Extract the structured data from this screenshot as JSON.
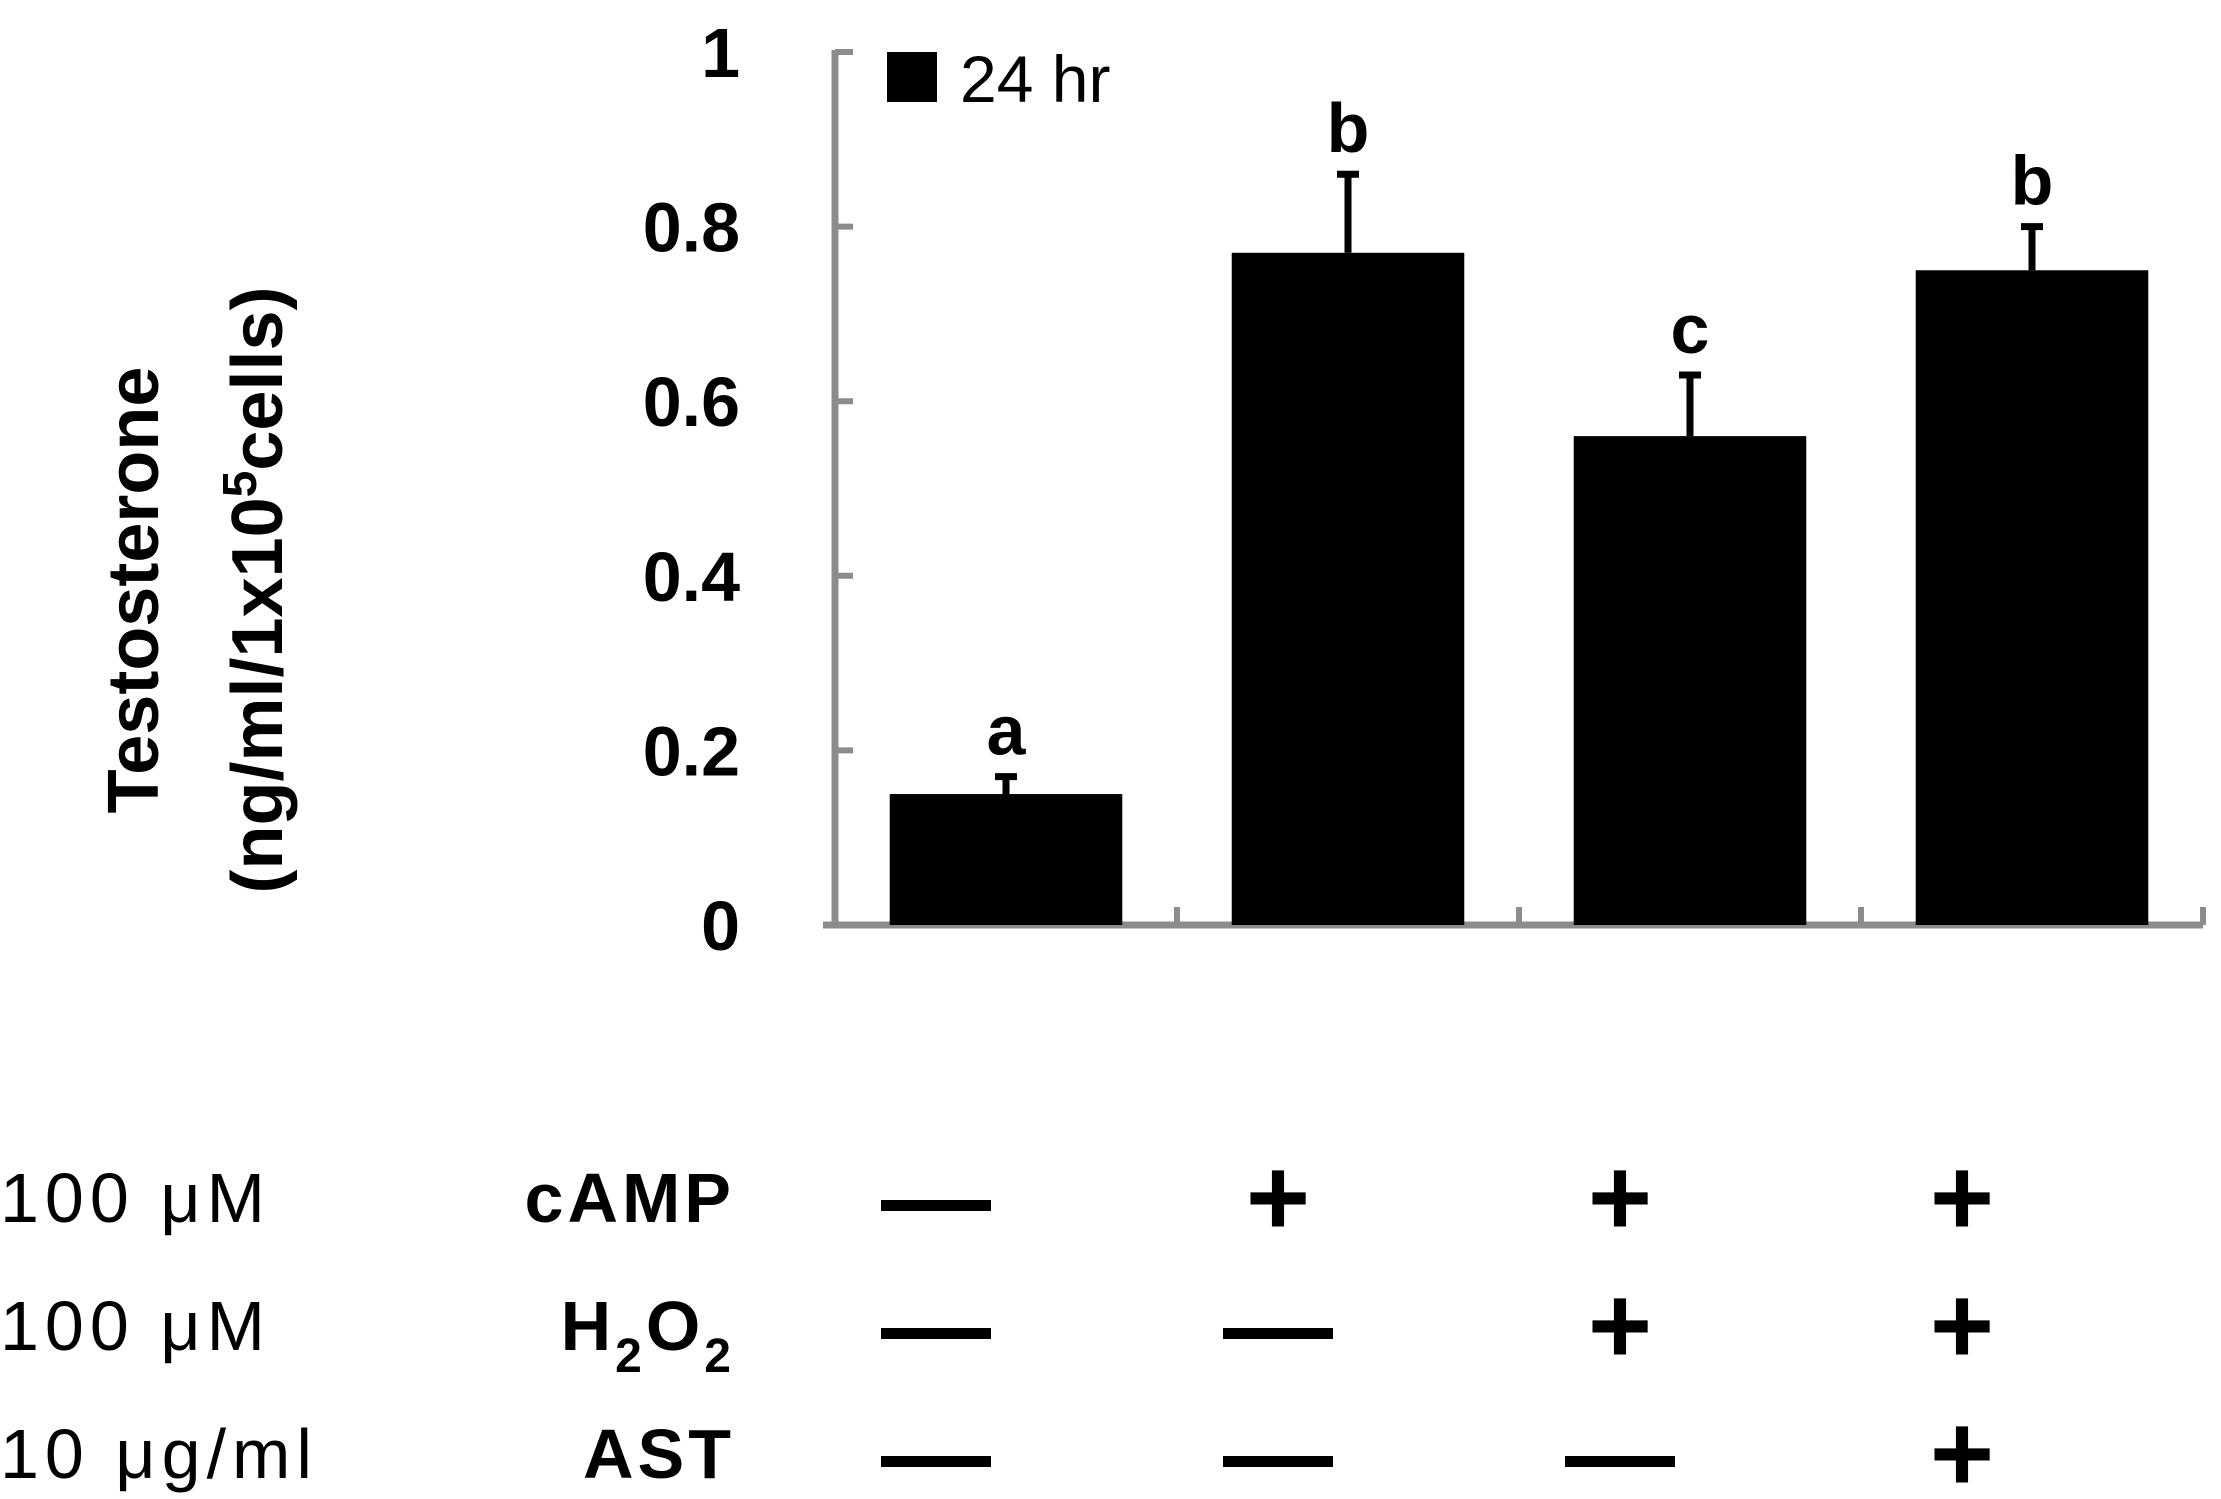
{
  "chart_data": {
    "type": "bar",
    "ylabel_line1": "Testosterone",
    "ylabel_line2_prefix": "(ng/ml/1x10",
    "ylabel_line2_sup": "5",
    "ylabel_line2_suffix": "cells)",
    "ylim": [
      0,
      1
    ],
    "yticks": [
      "0",
      "0.2",
      "0.4",
      "0.6",
      "0.8",
      "1"
    ],
    "ytick_values": [
      0,
      0.2,
      0.4,
      0.6,
      0.8,
      1
    ],
    "legend": {
      "label": "24 hr",
      "position": "top-left"
    },
    "series": [
      {
        "name": "24 hr",
        "color": "#000000",
        "values": [
          0.15,
          0.77,
          0.56,
          0.75
        ],
        "errors": [
          0.02,
          0.09,
          0.07,
          0.05
        ],
        "significance": [
          "a",
          "b",
          "c",
          "b"
        ]
      }
    ],
    "axis_color": "#8c8c8c"
  },
  "treatments": [
    {
      "conc": "100  μM",
      "name": "cAMP",
      "name_sub": "",
      "signs": [
        "—",
        "+",
        "+",
        "+"
      ]
    },
    {
      "conc": "100  μM",
      "name": "H",
      "name_sub": "2",
      "name2": "O",
      "name2_sub": "2",
      "signs": [
        "—",
        "—",
        "+",
        "+"
      ]
    },
    {
      "conc": "10  μg/ml",
      "name": "AST",
      "name_sub": "",
      "signs": [
        "—",
        "—",
        "—",
        "+"
      ]
    }
  ]
}
